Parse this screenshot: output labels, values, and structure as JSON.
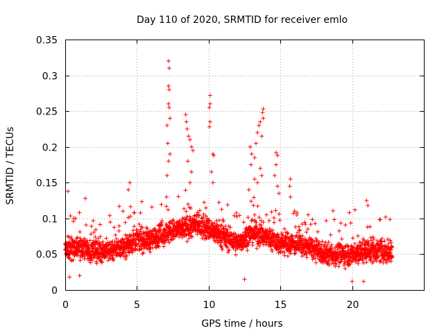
{
  "chart_data": {
    "type": "scatter",
    "title": "Day 110 of 2020, SRMTID for receiver emlo",
    "xlabel": "GPS time / hours",
    "ylabel": "SRMTID / TECUs",
    "xlim": [
      0,
      25
    ],
    "ylim": [
      0,
      0.35
    ],
    "xticks": [
      0,
      5,
      10,
      15,
      20
    ],
    "yticks": [
      0,
      0.05,
      0.1,
      0.15,
      0.2,
      0.25,
      0.3,
      0.35
    ],
    "xtick_labels": [
      "0",
      "5",
      "10",
      "15",
      "20"
    ],
    "ytick_labels": [
      "0",
      "0.05",
      "0.1",
      "0.15",
      "0.2",
      "0.25",
      "0.3",
      "0.35"
    ],
    "grid": true,
    "marker": "+",
    "series_color": "#ff0000",
    "baseline": [
      [
        0,
        0.055
      ],
      [
        1,
        0.06
      ],
      [
        2,
        0.055
      ],
      [
        3,
        0.055
      ],
      [
        4,
        0.06
      ],
      [
        5,
        0.07
      ],
      [
        6,
        0.07
      ],
      [
        7,
        0.08
      ],
      [
        8,
        0.085
      ],
      [
        9,
        0.09
      ],
      [
        10,
        0.085
      ],
      [
        11,
        0.075
      ],
      [
        12,
        0.065
      ],
      [
        13,
        0.08
      ],
      [
        14,
        0.075
      ],
      [
        15,
        0.065
      ],
      [
        16,
        0.065
      ],
      [
        17,
        0.06
      ],
      [
        18,
        0.05
      ],
      [
        19,
        0.05
      ],
      [
        20,
        0.05
      ],
      [
        21,
        0.055
      ],
      [
        22,
        0.055
      ],
      [
        22.8,
        0.05
      ]
    ],
    "point_count": 2600,
    "point_spread": 0.03,
    "extra_points": [
      {
        "x": 7.2,
        "y": 0.32
      },
      {
        "x": 7.25,
        "y": 0.31
      },
      {
        "x": 7.2,
        "y": 0.285
      },
      {
        "x": 7.25,
        "y": 0.28
      },
      {
        "x": 7.2,
        "y": 0.26
      },
      {
        "x": 7.25,
        "y": 0.255
      },
      {
        "x": 7.3,
        "y": 0.24
      },
      {
        "x": 7.1,
        "y": 0.23
      },
      {
        "x": 7.15,
        "y": 0.205
      },
      {
        "x": 7.3,
        "y": 0.19
      },
      {
        "x": 7.2,
        "y": 0.18
      },
      {
        "x": 7.1,
        "y": 0.16
      },
      {
        "x": 8.4,
        "y": 0.245
      },
      {
        "x": 8.45,
        "y": 0.235
      },
      {
        "x": 8.5,
        "y": 0.225
      },
      {
        "x": 8.6,
        "y": 0.215
      },
      {
        "x": 8.7,
        "y": 0.21
      },
      {
        "x": 8.8,
        "y": 0.2
      },
      {
        "x": 8.9,
        "y": 0.195
      },
      {
        "x": 8.55,
        "y": 0.18
      },
      {
        "x": 8.8,
        "y": 0.165
      },
      {
        "x": 8.7,
        "y": 0.15
      },
      {
        "x": 10.1,
        "y": 0.272
      },
      {
        "x": 10.1,
        "y": 0.26
      },
      {
        "x": 10.05,
        "y": 0.255
      },
      {
        "x": 10.1,
        "y": 0.235
      },
      {
        "x": 10.05,
        "y": 0.228
      },
      {
        "x": 10.3,
        "y": 0.19
      },
      {
        "x": 10.35,
        "y": 0.188
      },
      {
        "x": 10.2,
        "y": 0.165
      },
      {
        "x": 10.3,
        "y": 0.15
      },
      {
        "x": 13.8,
        "y": 0.253
      },
      {
        "x": 13.75,
        "y": 0.248
      },
      {
        "x": 13.8,
        "y": 0.24
      },
      {
        "x": 13.6,
        "y": 0.235
      },
      {
        "x": 13.5,
        "y": 0.23
      },
      {
        "x": 13.4,
        "y": 0.22
      },
      {
        "x": 13.7,
        "y": 0.215
      },
      {
        "x": 13.3,
        "y": 0.205
      },
      {
        "x": 12.9,
        "y": 0.2
      },
      {
        "x": 13.0,
        "y": 0.19
      },
      {
        "x": 13.2,
        "y": 0.185
      },
      {
        "x": 12.95,
        "y": 0.175
      },
      {
        "x": 13.6,
        "y": 0.17
      },
      {
        "x": 13.7,
        "y": 0.16
      },
      {
        "x": 13.2,
        "y": 0.155
      },
      {
        "x": 13.4,
        "y": 0.15
      },
      {
        "x": 12.8,
        "y": 0.14
      },
      {
        "x": 14.7,
        "y": 0.192
      },
      {
        "x": 14.8,
        "y": 0.188
      },
      {
        "x": 14.7,
        "y": 0.175
      },
      {
        "x": 14.6,
        "y": 0.16
      },
      {
        "x": 14.8,
        "y": 0.145
      },
      {
        "x": 14.9,
        "y": 0.135
      },
      {
        "x": 15.7,
        "y": 0.155
      },
      {
        "x": 15.65,
        "y": 0.145
      },
      {
        "x": 15.7,
        "y": 0.13
      },
      {
        "x": 4.5,
        "y": 0.15
      },
      {
        "x": 4.4,
        "y": 0.14
      },
      {
        "x": 0.2,
        "y": 0.138
      },
      {
        "x": 1.4,
        "y": 0.128
      },
      {
        "x": 21.0,
        "y": 0.125
      },
      {
        "x": 21.1,
        "y": 0.118
      },
      {
        "x": 20.2,
        "y": 0.112
      },
      {
        "x": 19.8,
        "y": 0.108
      },
      {
        "x": 12.5,
        "y": 0.015
      },
      {
        "x": 20.0,
        "y": 0.012
      },
      {
        "x": 20.8,
        "y": 0.012
      },
      {
        "x": 0.3,
        "y": 0.018
      },
      {
        "x": 1.0,
        "y": 0.02
      }
    ]
  }
}
